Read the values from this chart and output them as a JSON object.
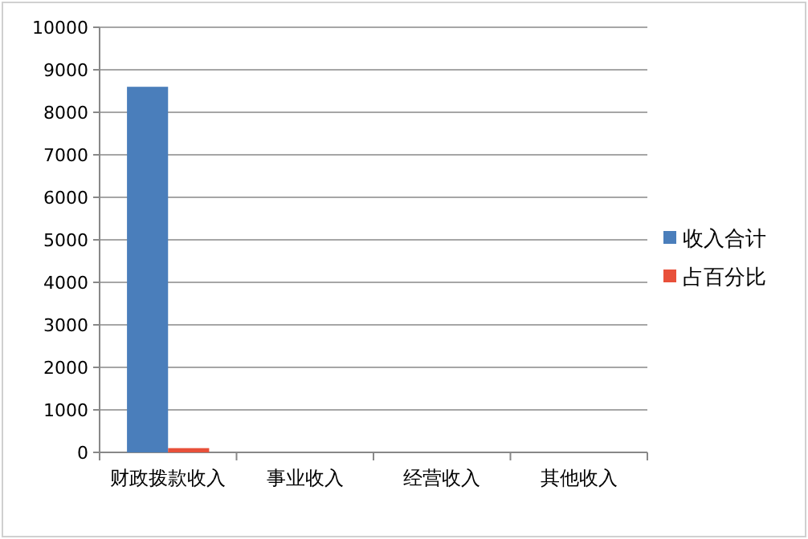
{
  "chart_data": {
    "type": "bar",
    "categories": [
      "财政拨款收入",
      "事业收入",
      "经营收入",
      "其他收入"
    ],
    "series": [
      {
        "name": "收入合计",
        "color": "#4a7ebb",
        "values": [
          8600,
          0,
          0,
          0
        ]
      },
      {
        "name": "占百分比",
        "color": "#e8503a",
        "values": [
          100,
          0,
          0,
          0
        ]
      }
    ],
    "ylim": [
      0,
      10000
    ],
    "yticks": [
      0,
      1000,
      2000,
      3000,
      4000,
      5000,
      6000,
      7000,
      8000,
      9000,
      10000
    ],
    "grid": "y",
    "legend": "right"
  }
}
